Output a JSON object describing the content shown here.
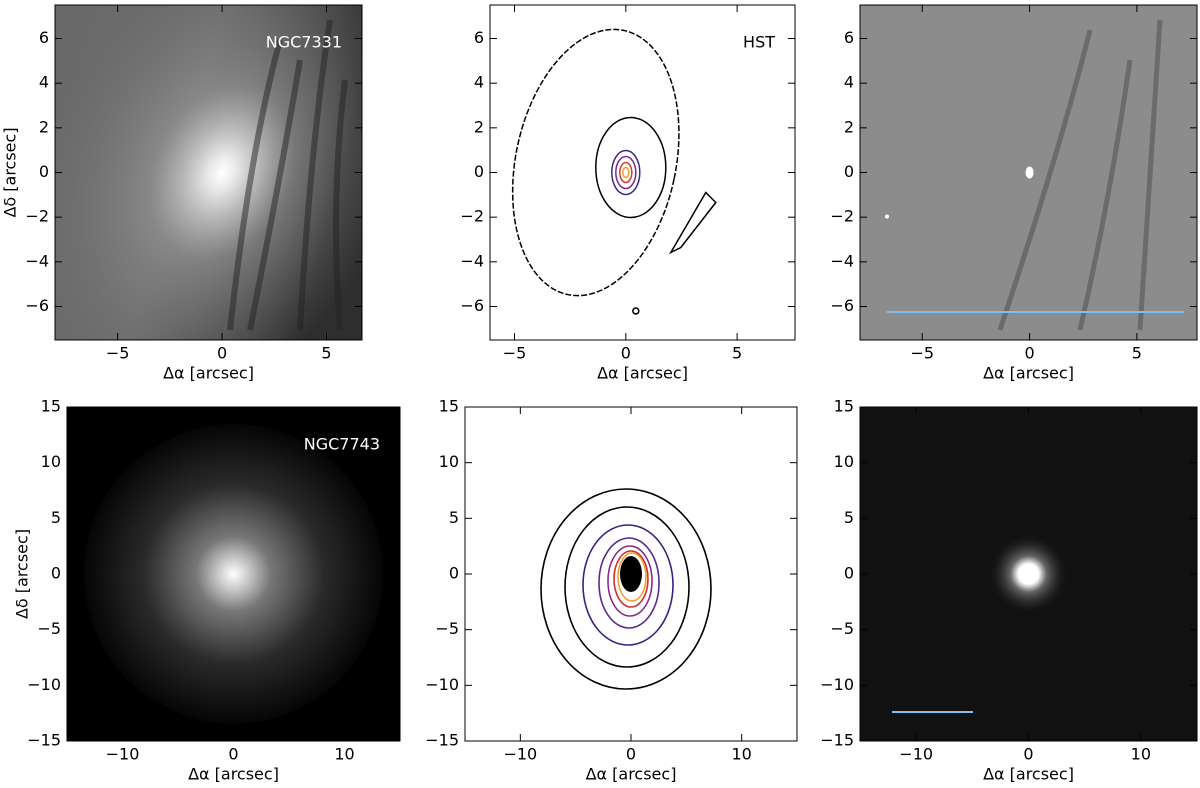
{
  "chart_data": [
    {
      "type": "galaxy",
      "annotation": "NGC7331",
      "xlabel": "Δα [arcsec]",
      "ylabel": "Δδ [arcsec]",
      "xlim": [
        -8,
        6.7
      ],
      "ylim": [
        -7.5,
        7.5
      ],
      "xticks": [
        {
          "value": -5,
          "label": "−5"
        },
        0,
        5
      ],
      "yticks": [
        {
          "value": -6,
          "label": "−6"
        },
        {
          "value": -4,
          "label": "−4"
        },
        {
          "value": -2,
          "label": "−2"
        },
        0,
        2,
        4,
        6
      ]
    },
    {
      "type": "contour",
      "annotation": "HST",
      "xlabel": "Δα [arcsec]",
      "xlim": [
        -6.1,
        7.6
      ],
      "ylim": [
        -7.5,
        7.5
      ],
      "xticks": [
        {
          "value": -5,
          "label": "−5"
        },
        0,
        5
      ],
      "yticks": [
        {
          "value": -6,
          "label": "−6"
        },
        {
          "value": -4,
          "label": "−4"
        },
        {
          "value": -2,
          "label": "−2"
        },
        0,
        2,
        4,
        6
      ]
    },
    {
      "type": "residual",
      "xlabel": "Δα [arcsec]",
      "xlim": [
        -7.9,
        7.8
      ],
      "ylim": [
        -7.5,
        7.5
      ],
      "xticks": [
        {
          "value": -5,
          "label": "−5"
        },
        0,
        5
      ],
      "yticks": [
        {
          "value": -6,
          "label": "−6"
        },
        {
          "value": -4,
          "label": "−4"
        },
        {
          "value": -2,
          "label": "−2"
        },
        0,
        2,
        4,
        6
      ]
    },
    {
      "type": "galaxy",
      "annotation": "NGC7743",
      "xlabel": "Δα [arcsec]",
      "ylabel": "Δδ [arcsec]",
      "xlim": [
        -15,
        15
      ],
      "ylim": [
        -15,
        15
      ],
      "xticks": [
        {
          "value": -10,
          "label": "−10"
        },
        0,
        10
      ],
      "yticks": [
        {
          "value": -15,
          "label": "−15"
        },
        {
          "value": -10,
          "label": "−10"
        },
        {
          "value": -5,
          "label": "−5"
        },
        0,
        5,
        10,
        15
      ]
    },
    {
      "type": "contour",
      "xlabel": "Δα [arcsec]",
      "xlim": [
        -15,
        15
      ],
      "ylim": [
        -15,
        15
      ],
      "xticks": [
        {
          "value": -10,
          "label": "−10"
        },
        0,
        10
      ],
      "yticks": [
        {
          "value": -15,
          "label": "−15"
        },
        {
          "value": -10,
          "label": "−10"
        },
        {
          "value": -5,
          "label": "−5"
        },
        0,
        5,
        10,
        15
      ]
    },
    {
      "type": "residual",
      "xlabel": "Δα [arcsec]",
      "xlim": [
        -15,
        15
      ],
      "ylim": [
        -15,
        15
      ],
      "xticks": [
        {
          "value": -10,
          "label": "−10"
        },
        0,
        10
      ],
      "yticks": [
        {
          "value": -15,
          "label": "−15"
        },
        {
          "value": -10,
          "label": "−10"
        },
        {
          "value": -5,
          "label": "−5"
        },
        0,
        5,
        10,
        15
      ]
    }
  ]
}
